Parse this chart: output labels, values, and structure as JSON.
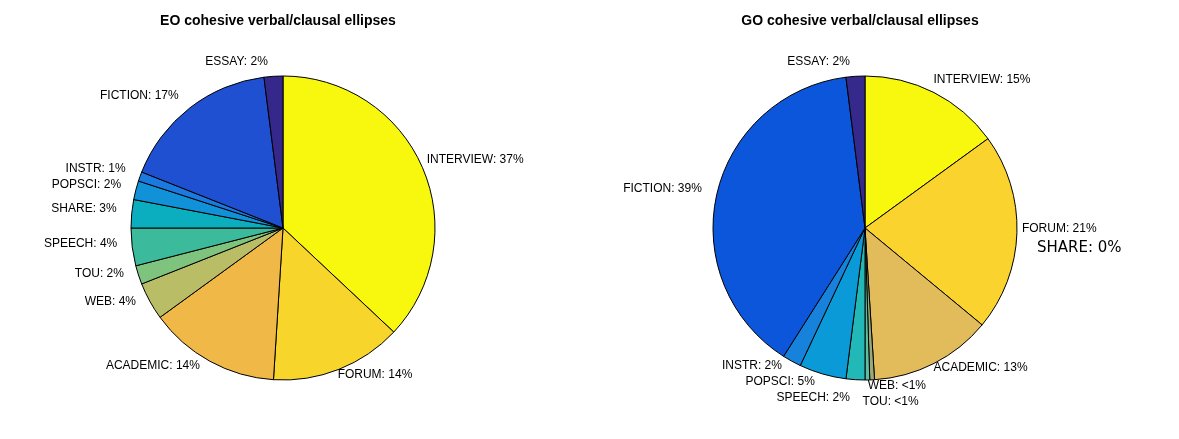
{
  "chart_data": [
    {
      "type": "pie",
      "title": "EO cohesive verbal/clausal ellipses",
      "categories": [
        "INTERVIEW",
        "FORUM",
        "ACADEMIC",
        "WEB",
        "TOU",
        "SPEECH",
        "SHARE",
        "POPSCI",
        "INSTR",
        "FICTION",
        "ESSAY"
      ],
      "values": [
        37,
        14,
        14,
        4,
        2,
        4,
        3,
        2,
        1,
        17,
        2
      ],
      "value_labels": [
        "37%",
        "14%",
        "14%",
        "4%",
        "2%",
        "4%",
        "3%",
        "2%",
        "1%",
        "17%",
        "2%"
      ],
      "colors": [
        "#f8f80f",
        "#f7d52a",
        "#f0b847",
        "#b9be66",
        "#7ec37e",
        "#3bbb9b",
        "#0aaebf",
        "#1192d8",
        "#1a7ae0",
        "#2050d2",
        "#35288a"
      ]
    },
    {
      "type": "pie",
      "title": "GO cohesive verbal/clausal ellipses",
      "categories": [
        "INTERVIEW",
        "FORUM",
        "ACADEMIC",
        "WEB",
        "TOU",
        "SPEECH",
        "POPSCI",
        "INSTR",
        "FICTION",
        "ESSAY"
      ],
      "values": [
        15,
        21,
        13,
        0.5,
        0.5,
        2,
        5,
        2,
        39,
        2
      ],
      "value_labels": [
        "15%",
        "21%",
        "13%",
        "<1%",
        "<1%",
        "2%",
        "5%",
        "2%",
        "39%",
        "2%"
      ],
      "colors": [
        "#f8f80f",
        "#fbd32e",
        "#e2bb5a",
        "#9aa87a",
        "#5cc0a0",
        "#22b8b8",
        "#0a9ad8",
        "#1782dc",
        "#0c56dc",
        "#352a8c"
      ],
      "annotations": [
        "SHARE: 0%"
      ]
    }
  ]
}
